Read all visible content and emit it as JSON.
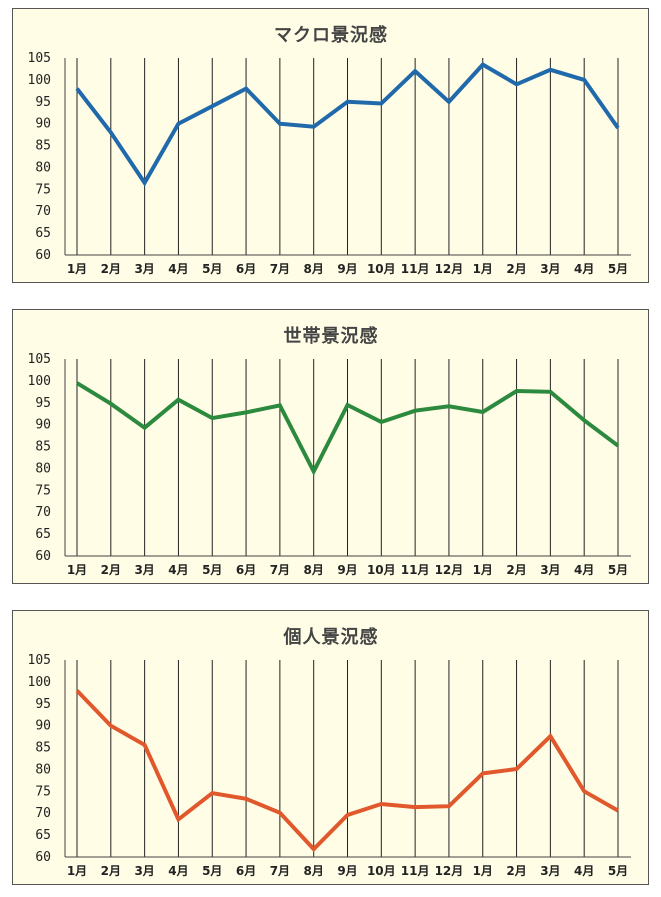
{
  "chart_data": [
    {
      "type": "line",
      "title": "マクロ景況感",
      "categories": [
        "1月",
        "2月",
        "3月",
        "4月",
        "5月",
        "6月",
        "7月",
        "8月",
        "9月",
        "10月",
        "11月",
        "12月",
        "1月",
        "2月",
        "3月",
        "4月",
        "5月"
      ],
      "series": [
        {
          "values": [
            98,
            88,
            76.5,
            90,
            94,
            98,
            90,
            89.3,
            95,
            94.6,
            102,
            95,
            103.5,
            99,
            102.3,
            100,
            89
          ],
          "color": "#2069ab"
        }
      ],
      "ylim": [
        60,
        105
      ],
      "yticks": [
        105,
        100,
        95,
        90,
        85,
        80,
        75,
        70,
        65,
        60
      ],
      "grid": "vertical"
    },
    {
      "type": "line",
      "title": "世帯景況感",
      "categories": [
        "1月",
        "2月",
        "3月",
        "4月",
        "5月",
        "6月",
        "7月",
        "8月",
        "9月",
        "10月",
        "11月",
        "12月",
        "1月",
        "2月",
        "3月",
        "4月",
        "5月"
      ],
      "series": [
        {
          "values": [
            99.5,
            94.8,
            89.3,
            95.7,
            91.5,
            92.8,
            94.4,
            79.3,
            94.5,
            90.6,
            93.2,
            94.2,
            92.9,
            97.7,
            97.5,
            91,
            85.2
          ],
          "color": "#2b8a3e"
        }
      ],
      "ylim": [
        60,
        105
      ],
      "yticks": [
        105,
        100,
        95,
        90,
        85,
        80,
        75,
        70,
        65,
        60
      ],
      "grid": "vertical"
    },
    {
      "type": "line",
      "title": "個人景況感",
      "categories": [
        "1月",
        "2月",
        "3月",
        "4月",
        "5月",
        "6月",
        "7月",
        "8月",
        "9月",
        "10月",
        "11月",
        "12月",
        "1月",
        "2月",
        "3月",
        "4月",
        "5月"
      ],
      "series": [
        {
          "values": [
            98,
            90,
            85.6,
            68.6,
            74.6,
            73.3,
            70.1,
            61.8,
            69.6,
            72.1,
            71.4,
            71.6,
            79.1,
            80.1,
            87.6,
            75,
            70.6
          ],
          "color": "#e0582b"
        }
      ],
      "ylim": [
        60,
        105
      ],
      "yticks": [
        105,
        100,
        95,
        90,
        85,
        80,
        75,
        70,
        65,
        60
      ],
      "grid": "vertical"
    }
  ]
}
